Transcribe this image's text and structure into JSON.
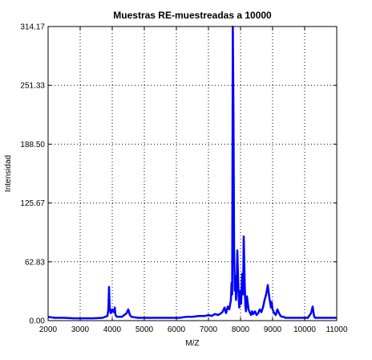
{
  "chart_data": {
    "type": "line",
    "title": "Muestras RE-muestreadas a 10000",
    "xlabel": "M/Z",
    "ylabel": "Intensidad",
    "xlim": [
      2000,
      11000
    ],
    "ylim": [
      0,
      314.17
    ],
    "xticks": [
      "2000",
      "3000",
      "4000",
      "5000",
      "6000",
      "7000",
      "8000",
      "9000",
      "10000",
      "11000"
    ],
    "yticks": [
      "0.00",
      "62.83",
      "125.67",
      "188.50",
      "251.33",
      "314.17"
    ],
    "grid": true,
    "line_color": "#0000ff",
    "series": [
      {
        "name": "",
        "x": [
          2000,
          2200,
          2500,
          2800,
          3100,
          3400,
          3700,
          3850,
          3880,
          3900,
          3920,
          3950,
          4000,
          4050,
          4080,
          4100,
          4150,
          4300,
          4450,
          4500,
          4550,
          4600,
          4800,
          5000,
          5300,
          5600,
          5900,
          6100,
          6300,
          6500,
          6700,
          6900,
          7000,
          7100,
          7200,
          7300,
          7400,
          7450,
          7500,
          7550,
          7600,
          7650,
          7700,
          7720,
          7740,
          7760,
          7780,
          7800,
          7820,
          7840,
          7860,
          7880,
          7900,
          7920,
          7940,
          7960,
          7980,
          8000,
          8020,
          8050,
          8080,
          8100,
          8130,
          8150,
          8170,
          8200,
          8250,
          8300,
          8330,
          8360,
          8400,
          8450,
          8500,
          8550,
          8600,
          8650,
          8700,
          8750,
          8800,
          8850,
          8900,
          8930,
          8950,
          8970,
          9000,
          9050,
          9100,
          9150,
          9200,
          9250,
          9300,
          9350,
          9400,
          9500,
          9600,
          9700,
          9800,
          9900,
          10000,
          10100,
          10200,
          10250,
          10280,
          10300,
          10330,
          10400,
          10500,
          10600,
          10700,
          10800,
          10900,
          11000
        ],
        "y": [
          4,
          3,
          3,
          2.5,
          2.5,
          2.5,
          3,
          5,
          12,
          36,
          14,
          8,
          12,
          9,
          14,
          6,
          4,
          4,
          8,
          12,
          6,
          4,
          3,
          3,
          3,
          3,
          3,
          3,
          4,
          4,
          5,
          5,
          6,
          5,
          7,
          6,
          8,
          10,
          14,
          8,
          15,
          12,
          22,
          40,
          28,
          314,
          220,
          75,
          32,
          48,
          22,
          38,
          75,
          50,
          28,
          14,
          20,
          32,
          18,
          50,
          28,
          90,
          40,
          16,
          10,
          26,
          12,
          8,
          6,
          10,
          7,
          10,
          6,
          8,
          12,
          9,
          14,
          22,
          28,
          38,
          24,
          18,
          14,
          20,
          12,
          8,
          6,
          12,
          8,
          5,
          4,
          4,
          3,
          3,
          3,
          3,
          3,
          3,
          3,
          3,
          8,
          15,
          8,
          4,
          3,
          3,
          3,
          3,
          3,
          3,
          3,
          3
        ]
      }
    ]
  }
}
